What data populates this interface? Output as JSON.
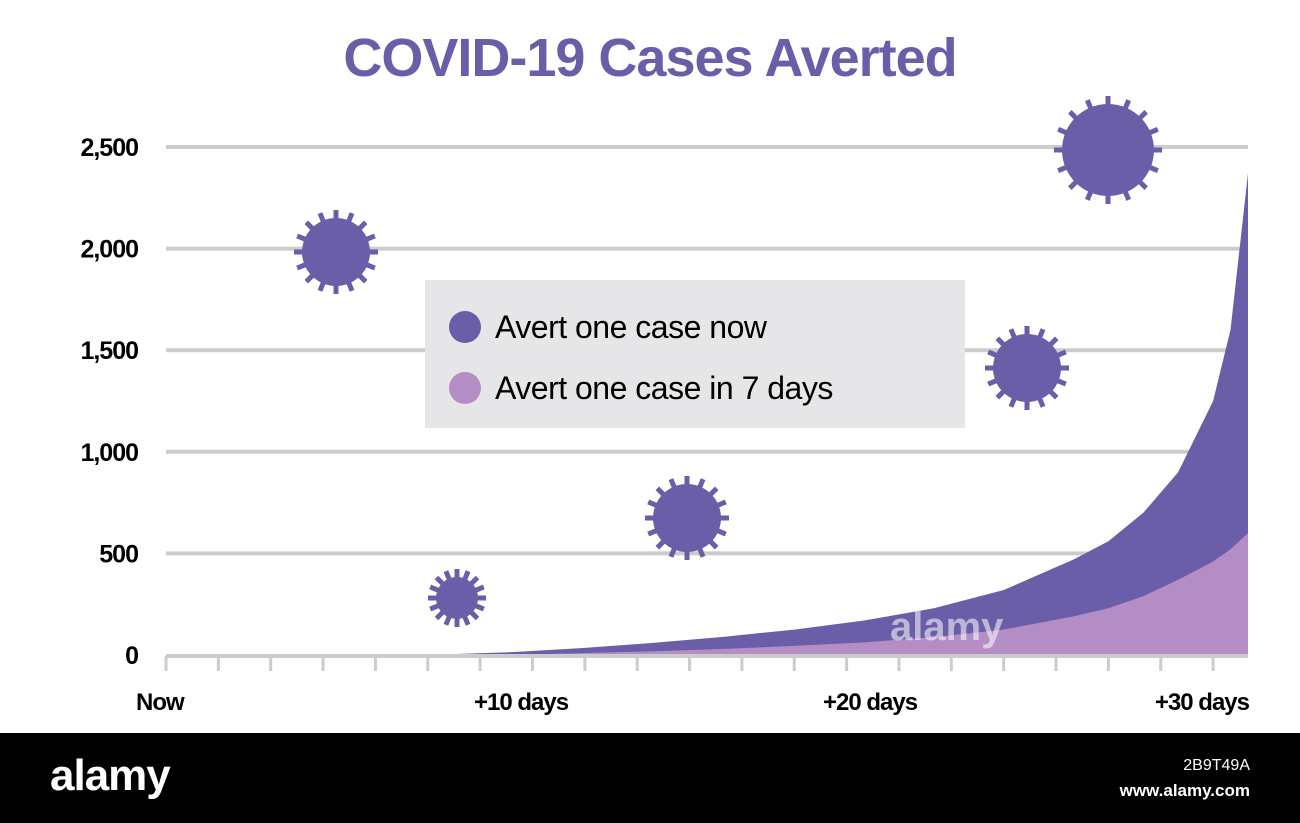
{
  "chart_data": {
    "type": "area",
    "title": "COVID-19 Cases Averted",
    "xlabel": "",
    "ylabel": "",
    "xlim": [
      0,
      31
    ],
    "ylim": [
      0,
      2500
    ],
    "y_ticks": [
      0,
      500,
      1000,
      1500,
      2000,
      2500
    ],
    "y_tick_labels": [
      "0",
      "500",
      "1,000",
      "1,500",
      "2,000",
      "2,500"
    ],
    "x_ticks": [
      0,
      10,
      20,
      30
    ],
    "x_tick_labels": [
      "Now",
      "+10 days",
      "+20 days",
      "+30 days"
    ],
    "x_minor_tick_step": 1.5,
    "grid": true,
    "legend_position": "center",
    "stacked": false,
    "x": [
      8,
      10,
      12,
      14,
      16,
      18,
      20,
      22,
      24,
      26,
      27,
      28,
      29,
      30,
      30.5,
      31
    ],
    "series": [
      {
        "name": "Avert one case now",
        "color": "#6a5ea8",
        "values": [
          3,
          15,
          35,
          60,
          90,
          125,
          170,
          230,
          320,
          470,
          560,
          700,
          900,
          1250,
          1600,
          2370
        ]
      },
      {
        "name": "Avert one case in 7 days",
        "color": "#b38dc4",
        "values": [
          0,
          0,
          10,
          18,
          30,
          45,
          62,
          88,
          125,
          190,
          230,
          290,
          370,
          460,
          520,
          600
        ]
      }
    ],
    "colors": {
      "title": "#6a5ea8",
      "grid": "#cccccc",
      "legend_bg": "#e6e6e8",
      "virus": "#6a5ea8"
    }
  },
  "decorations": {
    "virus_icons": [
      "virus-icon",
      "virus-icon",
      "virus-icon",
      "virus-icon",
      "virus-icon",
      "virus-icon"
    ]
  },
  "footer": {
    "logo": "alamy",
    "image_id": "2B9T49A",
    "url": "www.alamy.com",
    "watermark": "alamy"
  }
}
